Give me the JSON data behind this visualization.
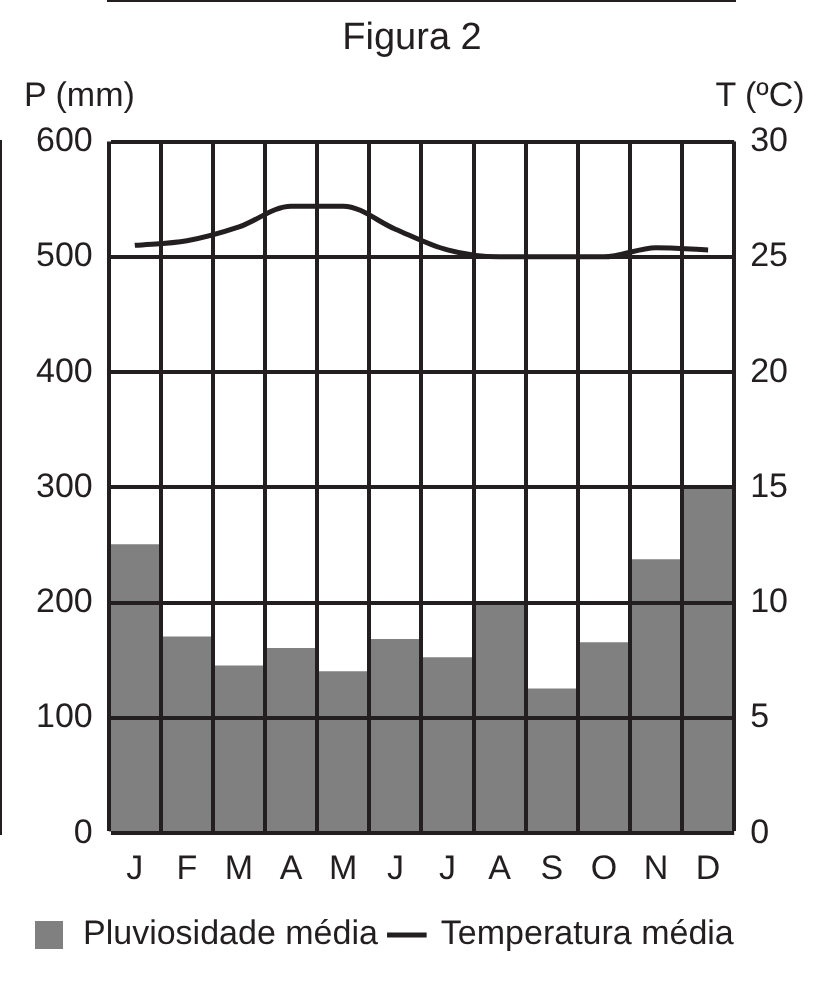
{
  "chart_data": {
    "type": "bar",
    "title": "Figura 2",
    "ylabel": "P (mm)",
    "y2label": "T (ºC)",
    "categories": [
      "J",
      "F",
      "M",
      "A",
      "M",
      "J",
      "J",
      "A",
      "S",
      "O",
      "N",
      "D"
    ],
    "series": [
      {
        "name": "Pluviosidade média",
        "color": "#808080",
        "values": [
          250,
          170,
          145,
          160,
          140,
          168,
          152,
          200,
          125,
          165,
          237,
          300
        ]
      },
      {
        "name": "Temperatura média",
        "type": "line",
        "axis": "y2",
        "color": "#231f20",
        "values": [
          25.5,
          25.7,
          26.3,
          27.2,
          27.2,
          26.2,
          25.3,
          25,
          25,
          25,
          25.4,
          25.3
        ]
      }
    ],
    "ylim": [
      0,
      600
    ],
    "yticks": [
      0,
      100,
      200,
      300,
      400,
      500,
      600
    ],
    "y2lim": [
      0,
      30
    ],
    "y2ticks": [
      0,
      5,
      10,
      15,
      20,
      25,
      30
    ],
    "grid": true,
    "legend": "bottom",
    "marker": "none",
    "line_style": "solid"
  }
}
